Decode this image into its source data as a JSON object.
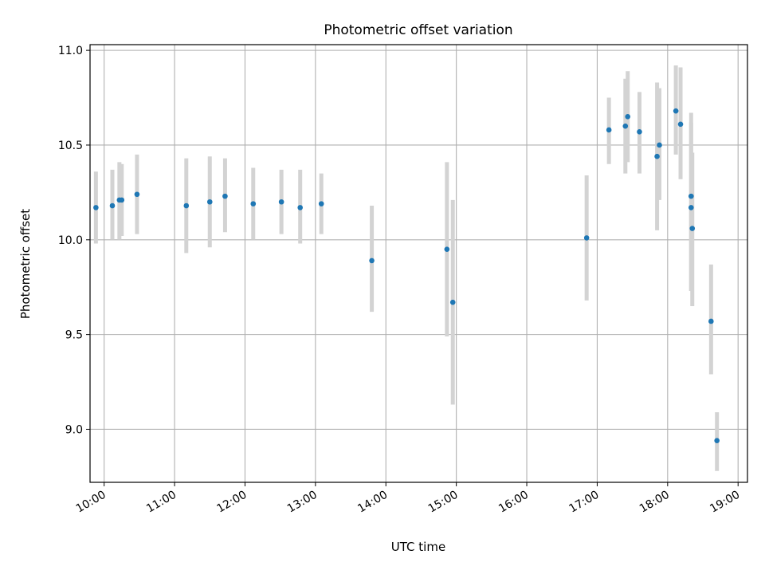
{
  "chart_data": {
    "type": "scatter",
    "title": "Photometric offset variation",
    "xlabel": "UTC time",
    "ylabel": "Photometric offset",
    "x_ticks": [
      "10:00",
      "11:00",
      "12:00",
      "13:00",
      "14:00",
      "15:00",
      "16:00",
      "17:00",
      "18:00",
      "19:00"
    ],
    "y_ticks": [
      "9.0",
      "9.5",
      "10.0",
      "10.5",
      "11.0"
    ],
    "xlim": [
      "09:48",
      "19:08"
    ],
    "ylim": [
      8.72,
      11.03
    ],
    "grid": true,
    "error_bar_color": "#d3d3d3",
    "marker_color": "#1f77b4",
    "series": [
      {
        "points": [
          {
            "t": "09:53",
            "y": 10.17,
            "lo": 9.98,
            "hi": 10.36
          },
          {
            "t": "10:07",
            "y": 10.18,
            "lo": 10.0,
            "hi": 10.37
          },
          {
            "t": "10:13",
            "y": 10.21,
            "lo": 10.0,
            "hi": 10.41
          },
          {
            "t": "10:15",
            "y": 10.21,
            "lo": 10.02,
            "hi": 10.4
          },
          {
            "t": "10:28",
            "y": 10.24,
            "lo": 10.03,
            "hi": 10.45
          },
          {
            "t": "11:10",
            "y": 10.18,
            "lo": 9.93,
            "hi": 10.43
          },
          {
            "t": "11:30",
            "y": 10.2,
            "lo": 9.96,
            "hi": 10.44
          },
          {
            "t": "11:43",
            "y": 10.23,
            "lo": 10.04,
            "hi": 10.43
          },
          {
            "t": "12:07",
            "y": 10.19,
            "lo": 10.0,
            "hi": 10.38
          },
          {
            "t": "12:31",
            "y": 10.2,
            "lo": 10.03,
            "hi": 10.37
          },
          {
            "t": "12:47",
            "y": 10.17,
            "lo": 9.98,
            "hi": 10.37
          },
          {
            "t": "13:05",
            "y": 10.19,
            "lo": 10.03,
            "hi": 10.35
          },
          {
            "t": "13:48",
            "y": 9.89,
            "lo": 9.62,
            "hi": 10.18
          },
          {
            "t": "14:52",
            "y": 9.95,
            "lo": 9.49,
            "hi": 10.41
          },
          {
            "t": "14:57",
            "y": 9.67,
            "lo": 9.13,
            "hi": 10.21
          },
          {
            "t": "16:51",
            "y": 10.01,
            "lo": 9.68,
            "hi": 10.34
          },
          {
            "t": "17:10",
            "y": 10.58,
            "lo": 10.4,
            "hi": 10.75
          },
          {
            "t": "17:24",
            "y": 10.6,
            "lo": 10.35,
            "hi": 10.85
          },
          {
            "t": "17:26",
            "y": 10.65,
            "lo": 10.41,
            "hi": 10.89
          },
          {
            "t": "17:36",
            "y": 10.57,
            "lo": 10.35,
            "hi": 10.78
          },
          {
            "t": "17:51",
            "y": 10.44,
            "lo": 10.05,
            "hi": 10.83
          },
          {
            "t": "17:53",
            "y": 10.5,
            "lo": 10.21,
            "hi": 10.8
          },
          {
            "t": "18:07",
            "y": 10.68,
            "lo": 10.45,
            "hi": 10.92
          },
          {
            "t": "18:11",
            "y": 10.61,
            "lo": 10.32,
            "hi": 10.91
          },
          {
            "t": "18:20",
            "y": 10.23,
            "lo": 9.73,
            "hi": 10.67
          },
          {
            "t": "18:20",
            "y": 10.17,
            "lo": 9.73,
            "hi": 10.62
          },
          {
            "t": "18:21",
            "y": 10.06,
            "lo": 9.65,
            "hi": 10.46
          },
          {
            "t": "18:37",
            "y": 9.57,
            "lo": 9.29,
            "hi": 9.87
          },
          {
            "t": "18:42",
            "y": 8.94,
            "lo": 8.78,
            "hi": 9.09
          }
        ]
      }
    ]
  }
}
